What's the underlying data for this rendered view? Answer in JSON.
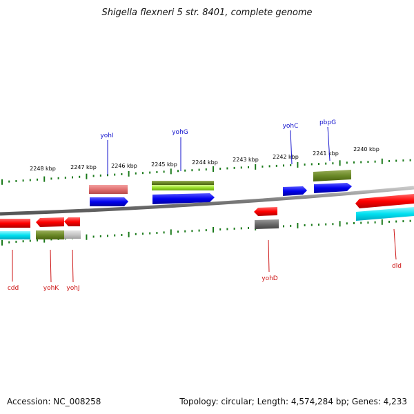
{
  "title": "Shigella flexneri 5 str. 8401, complete genome",
  "footer": {
    "accession": "Accession: NC_008258",
    "summary": "Topology: circular; Length: 4,574,284 bp; Genes: 4,233"
  },
  "colors": {
    "backbone": "#888888",
    "tick": "#1a7a1a",
    "top_label": "#1010cc",
    "bottom_label": "#cc1010"
  },
  "scale_labels": [
    "2248 kbp",
    "2247 kbp",
    "2246 kbp",
    "2245 kbp",
    "2244 kbp",
    "2243 kbp",
    "2242 kbp",
    "2241 kbp",
    "2240 kbp"
  ],
  "top_gene_labels": [
    "yohI",
    "yohG",
    "yohC",
    "pbpG"
  ],
  "bottom_gene_labels": [
    "cdd",
    "yohK",
    "yohJ",
    "yohD",
    "dld"
  ]
}
